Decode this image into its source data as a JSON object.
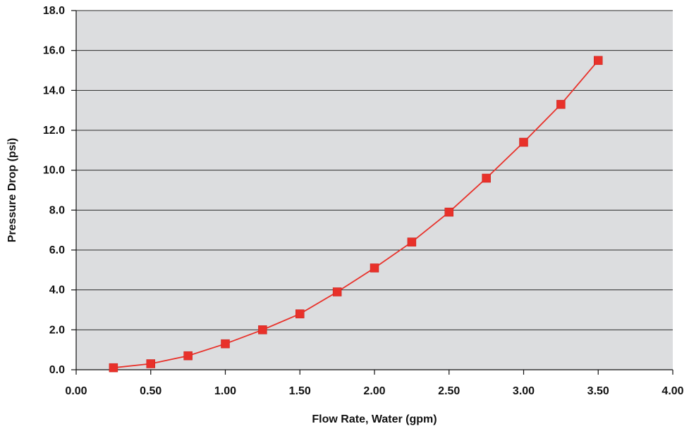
{
  "chart_data": {
    "type": "line",
    "title": "",
    "xlabel": "Flow Rate, Water (gpm)",
    "ylabel": "Pressure Drop (psi)",
    "xlim": [
      0,
      4
    ],
    "ylim": [
      0,
      18
    ],
    "x_ticks": [
      "0.00",
      "0.50",
      "1.00",
      "1.50",
      "2.00",
      "2.50",
      "3.00",
      "3.50",
      "4.00"
    ],
    "y_ticks": [
      "0.0",
      "2.0",
      "4.0",
      "6.0",
      "8.0",
      "10.0",
      "12.0",
      "14.0",
      "16.0",
      "18.0"
    ],
    "grid": "horizontal",
    "background_color": "#dcdddf",
    "series": [
      {
        "color": "#e8312a",
        "marker": "square",
        "x": [
          0.25,
          0.5,
          0.75,
          1.0,
          1.25,
          1.5,
          1.75,
          2.0,
          2.25,
          2.5,
          2.75,
          3.0,
          3.25,
          3.5
        ],
        "y": [
          0.1,
          0.3,
          0.7,
          1.3,
          2.0,
          2.8,
          3.9,
          5.1,
          6.4,
          7.9,
          9.6,
          11.4,
          13.3,
          15.5
        ]
      }
    ]
  }
}
